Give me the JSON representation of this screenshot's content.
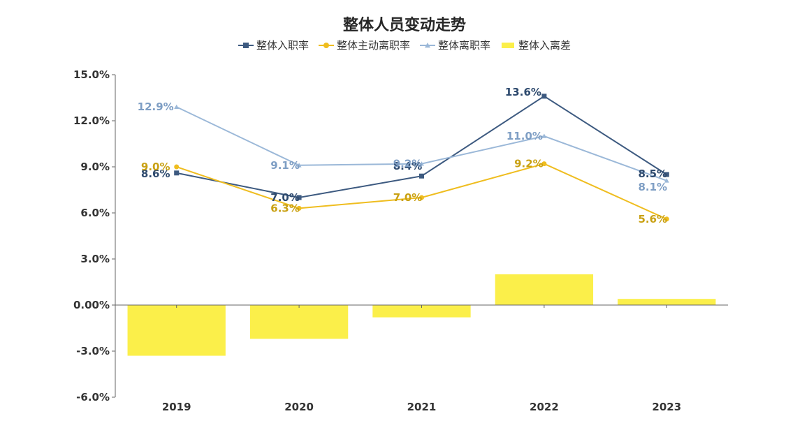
{
  "chart_data": {
    "type": "bar",
    "title": "整体人员变动走势",
    "categories": [
      "2019",
      "2020",
      "2021",
      "2022",
      "2023"
    ],
    "ylim": [
      -6.0,
      15.0
    ],
    "y_ticks": [
      "15.0%",
      "12.0%",
      "9.0%",
      "6.0%",
      "3.0%",
      "0.00%",
      "-3.0%",
      "-6.0%"
    ],
    "legend_position": "top",
    "grid": false,
    "series": [
      {
        "name": "整体入职率",
        "kind": "line",
        "marker": "square",
        "color": "#3d5a80",
        "values": [
          8.6,
          7.0,
          8.4,
          13.6,
          8.5
        ],
        "labels": [
          "8.6%",
          "7.0%",
          "8.4%",
          "13.6%",
          "8.5%"
        ]
      },
      {
        "name": "整体主动离职率",
        "kind": "line",
        "marker": "circle",
        "color": "#efbd1f",
        "values": [
          9.0,
          6.3,
          7.0,
          9.2,
          5.6
        ],
        "labels": [
          "9.0%",
          "6.3%",
          "7.0%",
          "9.2%",
          "5.6%"
        ]
      },
      {
        "name": "整体离职率",
        "kind": "line",
        "marker": "triangle",
        "color": "#9bb8d8",
        "values": [
          12.9,
          9.1,
          9.2,
          11.0,
          8.1
        ],
        "labels": [
          "12.9%",
          "9.1%",
          "9.2%",
          "11.0%",
          "8.1%"
        ]
      },
      {
        "name": "整体入离差",
        "kind": "bar",
        "color": "#fbef4a",
        "values": [
          -3.3,
          -2.2,
          -0.8,
          2.0,
          0.4
        ]
      }
    ]
  }
}
